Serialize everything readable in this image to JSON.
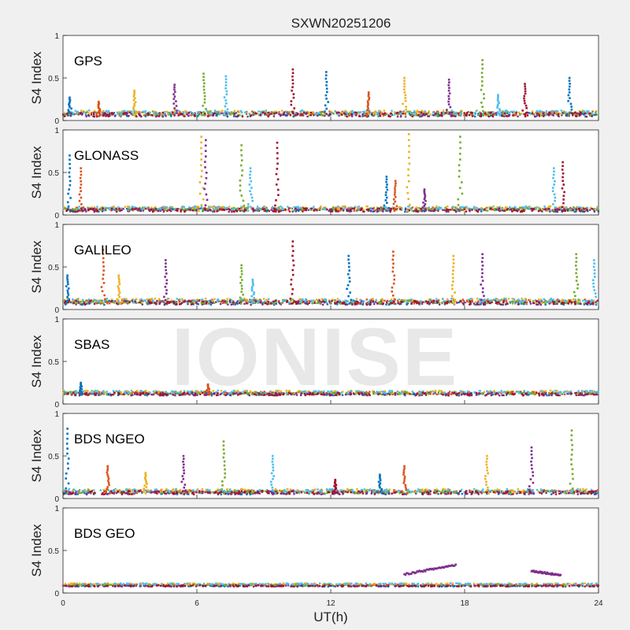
{
  "chart_data": {
    "type": "scatter",
    "title": "SXWN20251206",
    "xlabel": "UT(h)",
    "ylabel": "S4 Index",
    "xlim": [
      0,
      24
    ],
    "ylim": [
      0,
      1
    ],
    "x_ticks": [
      "0",
      "6",
      "12",
      "18",
      "24"
    ],
    "y_ticks": [
      "0",
      "0.5",
      "1"
    ],
    "colors": [
      "#0072bd",
      "#d95319",
      "#edb120",
      "#7e2f8e",
      "#77ac30",
      "#4dbeee",
      "#a2142f"
    ],
    "panels": [
      {
        "name": "GPS",
        "base": 0.06,
        "noise": 0.05,
        "spikes": [
          {
            "t": 0.3,
            "v": 0.27
          },
          {
            "t": 1.6,
            "v": 0.22
          },
          {
            "t": 3.2,
            "v": 0.35
          },
          {
            "t": 5.0,
            "v": 0.42
          },
          {
            "t": 6.3,
            "v": 0.55
          },
          {
            "t": 7.3,
            "v": 0.52
          },
          {
            "t": 10.3,
            "v": 0.6
          },
          {
            "t": 11.8,
            "v": 0.57
          },
          {
            "t": 13.7,
            "v": 0.33
          },
          {
            "t": 15.3,
            "v": 0.5
          },
          {
            "t": 17.3,
            "v": 0.48
          },
          {
            "t": 18.8,
            "v": 0.71
          },
          {
            "t": 19.5,
            "v": 0.3
          },
          {
            "t": 20.7,
            "v": 0.43
          },
          {
            "t": 22.7,
            "v": 0.5
          }
        ]
      },
      {
        "name": "GLONASS",
        "base": 0.05,
        "noise": 0.04,
        "spikes": [
          {
            "t": 0.3,
            "v": 0.7
          },
          {
            "t": 0.8,
            "v": 0.55
          },
          {
            "t": 6.2,
            "v": 0.92
          },
          {
            "t": 6.4,
            "v": 0.88
          },
          {
            "t": 8.0,
            "v": 0.82
          },
          {
            "t": 8.4,
            "v": 0.55
          },
          {
            "t": 9.6,
            "v": 0.85
          },
          {
            "t": 14.5,
            "v": 0.45
          },
          {
            "t": 14.9,
            "v": 0.4
          },
          {
            "t": 15.5,
            "v": 0.95
          },
          {
            "t": 16.2,
            "v": 0.3
          },
          {
            "t": 17.8,
            "v": 0.92
          },
          {
            "t": 22.0,
            "v": 0.55
          },
          {
            "t": 22.4,
            "v": 0.62
          }
        ]
      },
      {
        "name": "GALILEO",
        "base": 0.07,
        "noise": 0.05,
        "spikes": [
          {
            "t": 0.2,
            "v": 0.4
          },
          {
            "t": 1.8,
            "v": 0.7
          },
          {
            "t": 2.5,
            "v": 0.4
          },
          {
            "t": 4.6,
            "v": 0.58
          },
          {
            "t": 8.0,
            "v": 0.52
          },
          {
            "t": 8.5,
            "v": 0.35
          },
          {
            "t": 10.3,
            "v": 0.8
          },
          {
            "t": 12.8,
            "v": 0.63
          },
          {
            "t": 14.8,
            "v": 0.68
          },
          {
            "t": 17.5,
            "v": 0.63
          },
          {
            "t": 18.8,
            "v": 0.65
          },
          {
            "t": 23.0,
            "v": 0.65
          },
          {
            "t": 23.8,
            "v": 0.58
          }
        ]
      },
      {
        "name": "SBAS",
        "base": 0.11,
        "noise": 0.035,
        "spikes": [
          {
            "t": 0.8,
            "v": 0.25
          },
          {
            "t": 6.5,
            "v": 0.23
          }
        ]
      },
      {
        "name": "BDS NGEO",
        "base": 0.06,
        "noise": 0.04,
        "spikes": [
          {
            "t": 0.2,
            "v": 0.82
          },
          {
            "t": 2.0,
            "v": 0.38
          },
          {
            "t": 3.7,
            "v": 0.3
          },
          {
            "t": 5.4,
            "v": 0.5
          },
          {
            "t": 7.2,
            "v": 0.67
          },
          {
            "t": 9.4,
            "v": 0.5
          },
          {
            "t": 12.2,
            "v": 0.22
          },
          {
            "t": 14.2,
            "v": 0.28
          },
          {
            "t": 15.3,
            "v": 0.38
          },
          {
            "t": 19.0,
            "v": 0.5
          },
          {
            "t": 21.0,
            "v": 0.6
          },
          {
            "t": 22.8,
            "v": 0.8
          }
        ]
      },
      {
        "name": "BDS GEO",
        "base": 0.08,
        "noise": 0.015,
        "spikes": [],
        "tracks": [
          {
            "t0": 15.3,
            "t1": 17.6,
            "v0": 0.22,
            "v1": 0.33,
            "color": "#7e2f8e"
          },
          {
            "t0": 21.0,
            "t1": 22.3,
            "v0": 0.26,
            "v1": 0.21,
            "color": "#7e2f8e"
          }
        ]
      }
    ]
  },
  "watermark": "IONISE"
}
